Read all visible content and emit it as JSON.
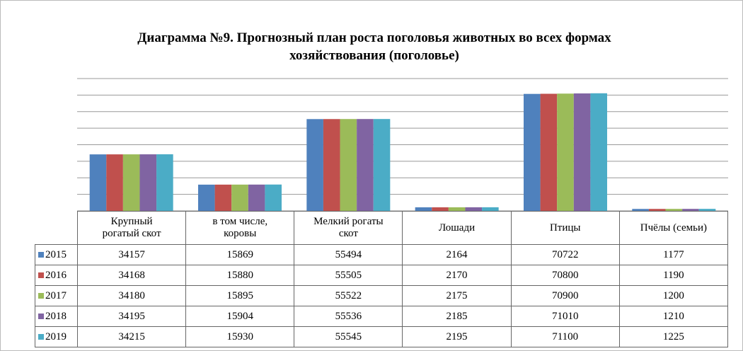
{
  "chart_data": {
    "type": "bar",
    "title": "Диаграмма №9. Прогнозный план роста поголовья животных во всех формах",
    "subtitle": "хозяйствования  (поголовье)",
    "categories": [
      "Крупный\nрогатый скот",
      "в том числе,\nкоровы",
      "Мелкий рогаты\nскот",
      "Лошади",
      "Птицы",
      "Пчёлы (семьи)"
    ],
    "series": [
      {
        "name": "2015",
        "color": "#4f81bd",
        "values": [
          34157,
          15869,
          55494,
          2164,
          70722,
          1177
        ]
      },
      {
        "name": "2016",
        "color": "#c0504d",
        "values": [
          34168,
          15880,
          55505,
          2170,
          70800,
          1190
        ]
      },
      {
        "name": "2017",
        "color": "#9bbb59",
        "values": [
          34180,
          15895,
          55522,
          2175,
          70900,
          1200
        ]
      },
      {
        "name": "2018",
        "color": "#8064a2",
        "values": [
          34195,
          15904,
          55536,
          2185,
          71010,
          1210
        ]
      },
      {
        "name": "2019",
        "color": "#4bacc6",
        "values": [
          34215,
          15930,
          55545,
          2195,
          71100,
          1225
        ]
      }
    ],
    "ylim": [
      0,
      80000
    ],
    "yticks": [
      0,
      10000,
      20000,
      30000,
      40000,
      50000,
      60000,
      70000,
      80000
    ],
    "grid": true
  }
}
